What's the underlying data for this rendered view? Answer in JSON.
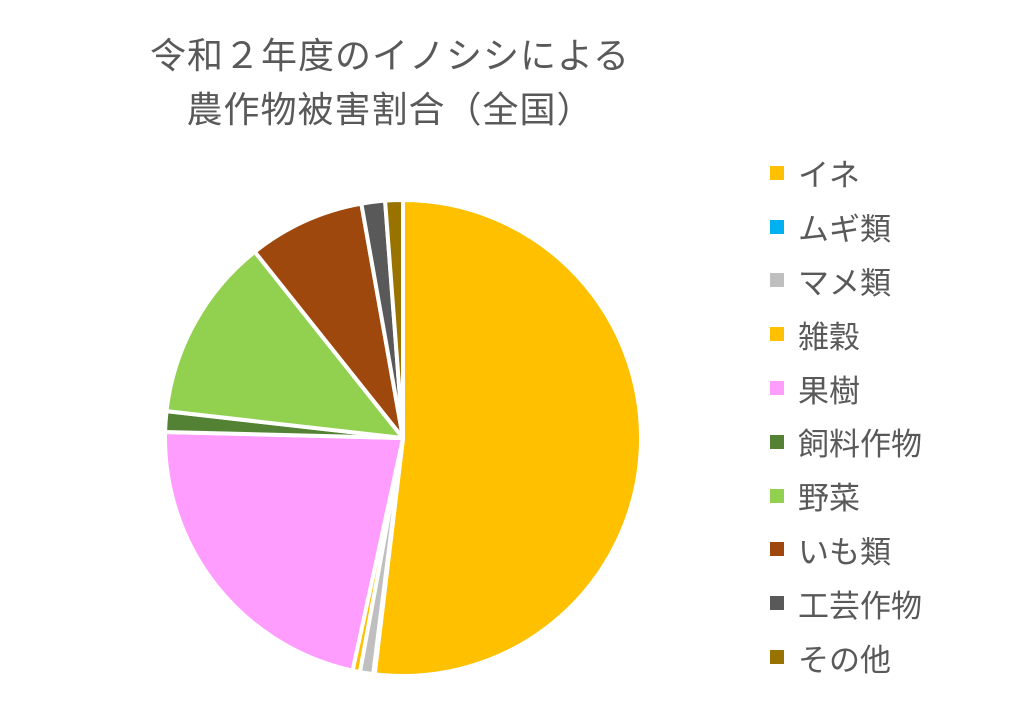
{
  "chart_data": {
    "type": "pie",
    "title_lines": [
      "令和２年度のイノシシによる",
      "農作物被害割合（全国）"
    ],
    "slices": [
      {
        "name": "イネ",
        "value": 51.9,
        "color": "#ffc000"
      },
      {
        "name": "ムギ類",
        "value": 0.1,
        "color": "#00b0f0"
      },
      {
        "name": "マメ類",
        "value": 0.9,
        "color": "#bfbfbf"
      },
      {
        "name": "雑穀",
        "value": 0.5,
        "color": "#ffc000"
      },
      {
        "name": "果樹",
        "value": 22.0,
        "color": "#ff9dff"
      },
      {
        "name": "飼料作物",
        "value": 1.4,
        "color": "#548235"
      },
      {
        "name": "野菜",
        "value": 12.5,
        "color": "#92d050"
      },
      {
        "name": "いも類",
        "value": 7.9,
        "color": "#9e480e"
      },
      {
        "name": "工芸作物",
        "value": 1.6,
        "color": "#595959"
      },
      {
        "name": "その他",
        "value": 1.2,
        "color": "#997300"
      }
    ],
    "legend_position": "right"
  }
}
